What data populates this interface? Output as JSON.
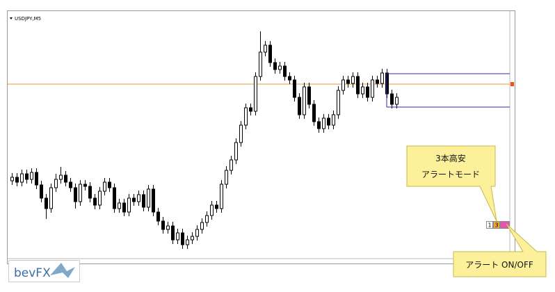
{
  "chart_data": {
    "type": "candlestick",
    "title": "USDJPY,M5",
    "ohlc": [
      [
        140,
        151,
        134,
        145
      ],
      [
        145,
        151,
        132,
        138
      ],
      [
        138,
        156,
        132,
        150
      ],
      [
        150,
        156,
        136,
        142
      ],
      [
        142,
        158,
        136,
        152
      ],
      [
        152,
        158,
        128,
        134
      ],
      [
        134,
        140,
        109,
        115
      ],
      [
        115,
        121,
        85,
        100
      ],
      [
        100,
        136,
        94,
        130
      ],
      [
        130,
        150,
        124,
        142
      ],
      [
        142,
        160,
        136,
        148
      ],
      [
        148,
        154,
        132,
        138
      ],
      [
        138,
        144,
        124,
        130
      ],
      [
        130,
        136,
        100,
        110
      ],
      [
        110,
        141,
        104,
        135
      ],
      [
        135,
        141,
        126,
        132
      ],
      [
        132,
        138,
        109,
        115
      ],
      [
        115,
        121,
        99,
        105
      ],
      [
        105,
        131,
        99,
        125
      ],
      [
        125,
        144,
        119,
        138
      ],
      [
        138,
        144,
        124,
        130
      ],
      [
        130,
        136,
        94,
        100
      ],
      [
        100,
        114,
        94,
        108
      ],
      [
        108,
        114,
        89,
        95
      ],
      [
        95,
        121,
        89,
        115
      ],
      [
        115,
        121,
        104,
        110
      ],
      [
        110,
        126,
        104,
        120
      ],
      [
        120,
        126,
        96,
        102
      ],
      [
        102,
        134,
        96,
        128
      ],
      [
        128,
        134,
        89,
        95
      ],
      [
        95,
        101,
        76,
        82
      ],
      [
        82,
        88,
        64,
        70
      ],
      [
        70,
        81,
        64,
        75
      ],
      [
        75,
        81,
        49,
        55
      ],
      [
        55,
        71,
        49,
        65
      ],
      [
        65,
        71,
        42,
        48
      ],
      [
        48,
        61,
        42,
        55
      ],
      [
        55,
        66,
        49,
        60
      ],
      [
        60,
        76,
        54,
        70
      ],
      [
        70,
        86,
        64,
        80
      ],
      [
        80,
        96,
        74,
        90
      ],
      [
        90,
        111,
        84,
        105
      ],
      [
        105,
        111,
        94,
        100
      ],
      [
        100,
        141,
        94,
        135
      ],
      [
        135,
        161,
        129,
        155
      ],
      [
        155,
        176,
        149,
        170
      ],
      [
        170,
        201,
        164,
        195
      ],
      [
        195,
        226,
        189,
        220
      ],
      [
        220,
        251,
        214,
        245
      ],
      [
        245,
        251,
        234,
        240
      ],
      [
        240,
        296,
        234,
        290
      ],
      [
        290,
        355,
        284,
        325
      ],
      [
        325,
        341,
        319,
        335
      ],
      [
        335,
        341,
        304,
        310
      ],
      [
        310,
        316,
        294,
        300
      ],
      [
        300,
        311,
        294,
        305
      ],
      [
        305,
        311,
        284,
        290
      ],
      [
        290,
        296,
        279,
        285
      ],
      [
        285,
        291,
        254,
        260
      ],
      [
        260,
        266,
        229,
        235
      ],
      [
        235,
        281,
        229,
        275
      ],
      [
        275,
        281,
        244,
        250
      ],
      [
        250,
        256,
        219,
        225
      ],
      [
        225,
        231,
        209,
        215
      ],
      [
        215,
        236,
        209,
        230
      ],
      [
        230,
        236,
        214,
        220
      ],
      [
        220,
        241,
        214,
        235
      ],
      [
        235,
        276,
        229,
        270
      ],
      [
        270,
        291,
        264,
        285
      ],
      [
        285,
        291,
        274,
        280
      ],
      [
        280,
        296,
        274,
        290
      ],
      [
        290,
        296,
        259,
        265
      ],
      [
        265,
        281,
        259,
        275
      ],
      [
        275,
        281,
        254,
        260
      ],
      [
        260,
        291,
        254,
        285
      ],
      [
        285,
        291,
        274,
        280
      ],
      [
        280,
        301,
        274,
        295
      ],
      [
        295,
        301,
        259,
        265
      ],
      [
        265,
        271,
        244,
        250
      ],
      [
        250,
        266,
        244,
        260
      ]
    ],
    "ylim": [
      28,
      383
    ],
    "level": 279,
    "level_color": "#e69a3c",
    "box": [
      246,
      294
    ],
    "box_color": "#2a2ac0"
  },
  "callouts": [
    {
      "lines": [
        "3本高安",
        "アラートモード"
      ]
    },
    {
      "lines": [
        "アラート ON/OFF"
      ]
    }
  ],
  "buttons": [
    "1",
    "3"
  ],
  "logo": "bevFX"
}
